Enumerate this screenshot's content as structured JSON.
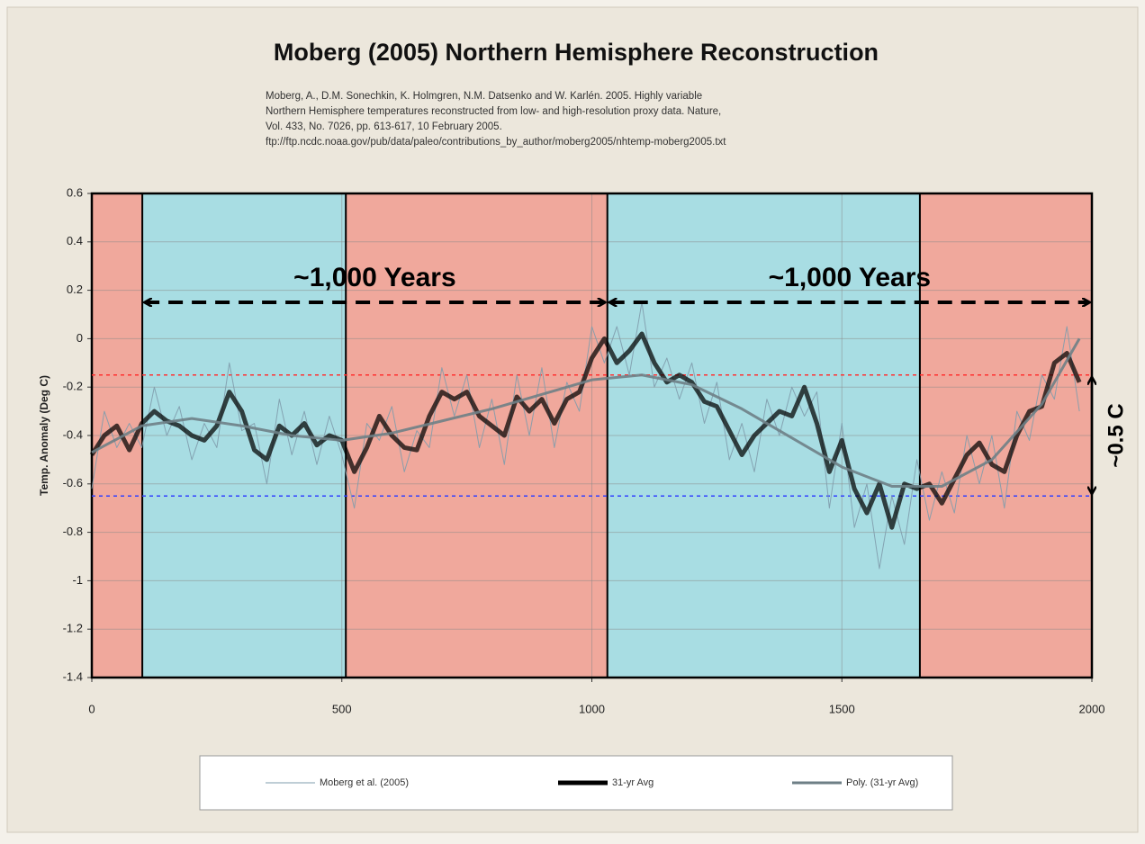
{
  "chart_data": {
    "type": "line",
    "title": "Moberg (2005) Northern Hemisphere Reconstruction",
    "citation": [
      "Moberg, A., D.M. Sonechkin, K. Holmgren, N.M. Datsenko and W. Karlén. 2005.  Highly variable",
      "Northern Hemisphere temperatures reconstructed from low-  and high-resolution proxy data. Nature,",
      "Vol. 433, No. 7026, pp. 613-617, 10 February 2005.",
      "ftp://ftp.ncdc.noaa.gov/pub/data/paleo/contributions_by_author/moberg2005/nhtemp-moberg2005.txt"
    ],
    "y_label": "Temp. Anomaly (Deg C)",
    "xlim": [
      0,
      2000
    ],
    "xticks": [
      0,
      500,
      1000,
      1500,
      2000
    ],
    "ylim": [
      -1.4,
      0.6
    ],
    "yticks": [
      0.6,
      0.4,
      0.2,
      0,
      -0.2,
      -0.4,
      -0.6,
      -0.8,
      -1,
      -1.2,
      -1.4
    ],
    "grid": true,
    "legend": "bottom",
    "periods": [
      {
        "start": 0,
        "end": 101,
        "color": "#f0a89c"
      },
      {
        "start": 101,
        "end": 508,
        "color": "#a8dde3"
      },
      {
        "start": 508,
        "end": 1031,
        "color": "#f0a89c"
      },
      {
        "start": 1031,
        "end": 1656,
        "color": "#a8dde3"
      },
      {
        "start": 1656,
        "end": 2000,
        "color": "#f0a89c"
      }
    ],
    "reference_lines": [
      {
        "value": -0.15,
        "color": "#ff3030"
      },
      {
        "value": -0.65,
        "color": "#3040ff"
      }
    ],
    "annotations": [
      {
        "text": "~1,000 Years",
        "x1": 101,
        "x2": 1031,
        "y": 0.15
      },
      {
        "text": "~1,000 Years",
        "x1": 1031,
        "x2": 2000,
        "y": 0.15
      }
    ],
    "range_annotation": {
      "text": "~0.5 C",
      "x": 2000,
      "y1": -0.15,
      "y2": -0.65
    },
    "series": [
      {
        "name": "Moberg et al. (2005)",
        "color": "#7f9cac",
        "width": 1,
        "x": [
          0,
          25,
          50,
          75,
          100,
          125,
          150,
          175,
          200,
          225,
          250,
          275,
          300,
          325,
          350,
          375,
          400,
          425,
          450,
          475,
          500,
          525,
          550,
          575,
          600,
          625,
          650,
          675,
          700,
          725,
          750,
          775,
          800,
          825,
          850,
          875,
          900,
          925,
          950,
          975,
          1000,
          1025,
          1050,
          1075,
          1100,
          1125,
          1150,
          1175,
          1200,
          1225,
          1250,
          1275,
          1300,
          1325,
          1350,
          1375,
          1400,
          1425,
          1450,
          1475,
          1500,
          1525,
          1550,
          1575,
          1600,
          1625,
          1650,
          1675,
          1700,
          1725,
          1750,
          1775,
          1800,
          1825,
          1850,
          1875,
          1900,
          1925,
          1950,
          1975
        ],
        "values": [
          -0.62,
          -0.3,
          -0.45,
          -0.35,
          -0.45,
          -0.2,
          -0.4,
          -0.28,
          -0.5,
          -0.35,
          -0.45,
          -0.1,
          -0.38,
          -0.35,
          -0.6,
          -0.25,
          -0.48,
          -0.3,
          -0.52,
          -0.32,
          -0.48,
          -0.7,
          -0.35,
          -0.42,
          -0.28,
          -0.55,
          -0.38,
          -0.45,
          -0.12,
          -0.32,
          -0.15,
          -0.45,
          -0.25,
          -0.52,
          -0.15,
          -0.4,
          -0.12,
          -0.45,
          -0.18,
          -0.3,
          0.05,
          -0.1,
          0.05,
          -0.15,
          0.15,
          -0.2,
          -0.08,
          -0.25,
          -0.1,
          -0.35,
          -0.18,
          -0.5,
          -0.35,
          -0.55,
          -0.25,
          -0.4,
          -0.2,
          -0.32,
          -0.22,
          -0.7,
          -0.35,
          -0.78,
          -0.6,
          -0.95,
          -0.65,
          -0.85,
          -0.5,
          -0.75,
          -0.55,
          -0.72,
          -0.4,
          -0.6,
          -0.4,
          -0.7,
          -0.3,
          -0.42,
          -0.15,
          -0.25,
          0.05,
          -0.3
        ]
      },
      {
        "name": "31-yr Avg",
        "color": "#000000",
        "width": 5,
        "x": [
          0,
          25,
          50,
          75,
          100,
          125,
          150,
          175,
          200,
          225,
          250,
          275,
          300,
          325,
          350,
          375,
          400,
          425,
          450,
          475,
          500,
          525,
          550,
          575,
          600,
          625,
          650,
          675,
          700,
          725,
          750,
          775,
          800,
          825,
          850,
          875,
          900,
          925,
          950,
          975,
          1000,
          1025,
          1050,
          1075,
          1100,
          1125,
          1150,
          1175,
          1200,
          1225,
          1250,
          1275,
          1300,
          1325,
          1350,
          1375,
          1400,
          1425,
          1450,
          1475,
          1500,
          1525,
          1550,
          1575,
          1600,
          1625,
          1650,
          1675,
          1700,
          1725,
          1750,
          1775,
          1800,
          1825,
          1850,
          1875,
          1900,
          1925,
          1950,
          1975
        ],
        "values": [
          -0.48,
          -0.4,
          -0.36,
          -0.46,
          -0.35,
          -0.3,
          -0.34,
          -0.36,
          -0.4,
          -0.42,
          -0.36,
          -0.22,
          -0.3,
          -0.46,
          -0.5,
          -0.36,
          -0.4,
          -0.35,
          -0.44,
          -0.4,
          -0.42,
          -0.55,
          -0.45,
          -0.32,
          -0.4,
          -0.45,
          -0.46,
          -0.32,
          -0.22,
          -0.25,
          -0.22,
          -0.32,
          -0.36,
          -0.4,
          -0.24,
          -0.3,
          -0.25,
          -0.35,
          -0.25,
          -0.22,
          -0.08,
          0.0,
          -0.1,
          -0.05,
          0.02,
          -0.1,
          -0.18,
          -0.15,
          -0.18,
          -0.26,
          -0.28,
          -0.38,
          -0.48,
          -0.4,
          -0.35,
          -0.3,
          -0.32,
          -0.2,
          -0.35,
          -0.55,
          -0.42,
          -0.62,
          -0.72,
          -0.6,
          -0.78,
          -0.6,
          -0.62,
          -0.6,
          -0.68,
          -0.58,
          -0.48,
          -0.43,
          -0.52,
          -0.55,
          -0.4,
          -0.3,
          -0.28,
          -0.1,
          -0.06,
          -0.18
        ]
      },
      {
        "name": "Poly. (31-yr Avg)",
        "color": "#6e7f86",
        "width": 3,
        "x": [
          0,
          100,
          200,
          300,
          400,
          500,
          600,
          700,
          800,
          900,
          1000,
          1100,
          1200,
          1300,
          1400,
          1500,
          1600,
          1700,
          1800,
          1900,
          1975
        ],
        "values": [
          -0.47,
          -0.36,
          -0.33,
          -0.36,
          -0.4,
          -0.42,
          -0.39,
          -0.34,
          -0.29,
          -0.23,
          -0.17,
          -0.15,
          -0.19,
          -0.29,
          -0.41,
          -0.53,
          -0.61,
          -0.61,
          -0.5,
          -0.27,
          0.0
        ]
      }
    ]
  }
}
